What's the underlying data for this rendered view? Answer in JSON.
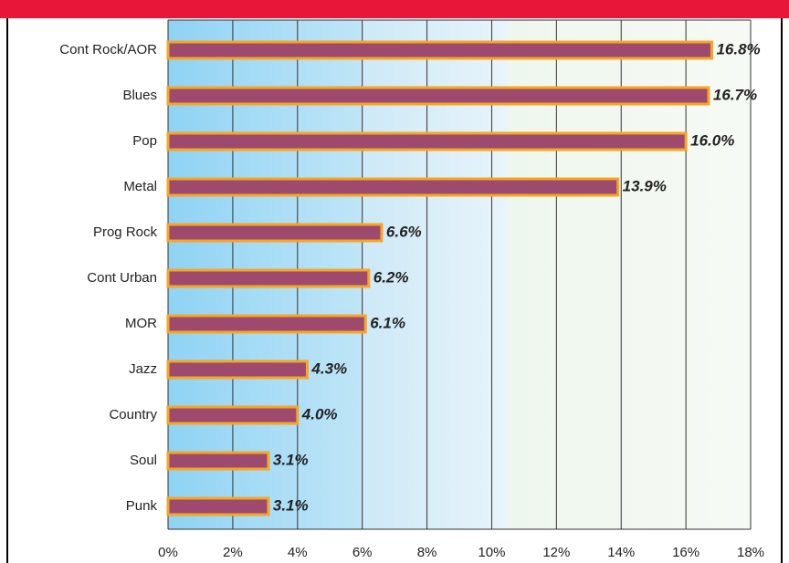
{
  "chart_data": {
    "type": "bar",
    "orientation": "horizontal",
    "categories": [
      "Cont Rock/AOR",
      "Blues",
      "Pop",
      "Metal",
      "Prog Rock",
      "Cont Urban",
      "MOR",
      "Jazz",
      "Country",
      "Soul",
      "Punk"
    ],
    "values": [
      16.8,
      16.7,
      16.0,
      13.9,
      6.6,
      6.2,
      6.1,
      4.3,
      4.0,
      3.1,
      3.1
    ],
    "value_labels": [
      "16.8%",
      "16.7%",
      "16.0%",
      "13.9%",
      "6.6%",
      "6.2%",
      "6.1%",
      "4.3%",
      "4.0%",
      "3.1%",
      "3.1%"
    ],
    "color": "#9e4a6e",
    "edge_color": "#f5a623",
    "xlim": [
      0,
      18
    ],
    "xticks": [
      {
        "value": 0,
        "label": "0%"
      },
      {
        "value": 2,
        "label": "2%"
      },
      {
        "value": 4,
        "label": "4%"
      },
      {
        "value": 6,
        "label": "6%"
      },
      {
        "value": 8,
        "label": "8%"
      },
      {
        "value": 10,
        "label": "10%"
      },
      {
        "value": 12,
        "label": "12%"
      },
      {
        "value": 14,
        "label": "14%"
      },
      {
        "value": 16,
        "label": "16%"
      },
      {
        "value": 18,
        "label": "18%"
      }
    ],
    "grid": true
  }
}
